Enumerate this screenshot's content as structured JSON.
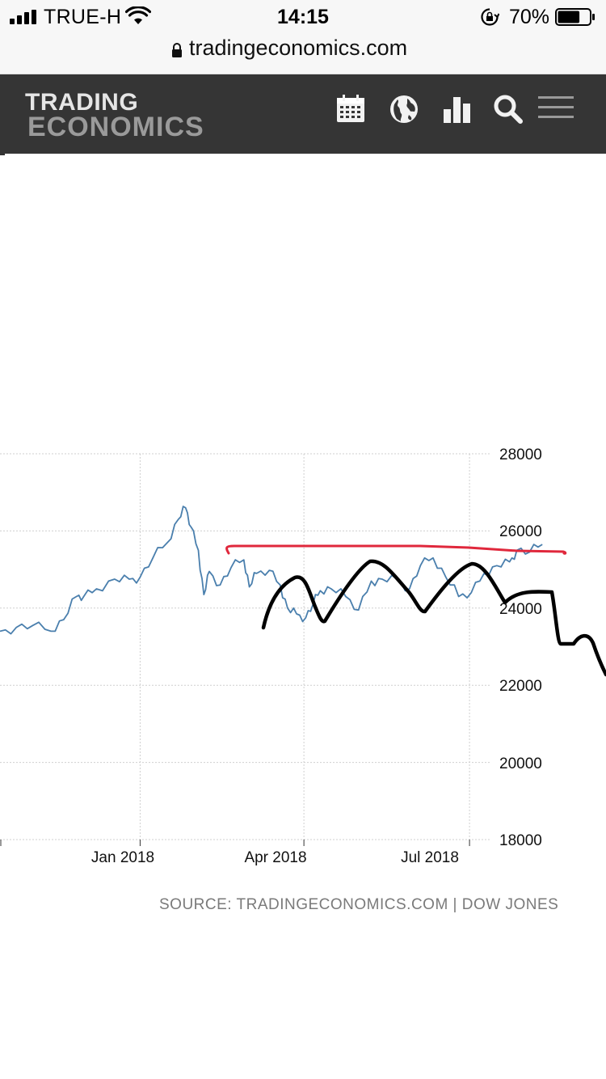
{
  "status_bar": {
    "carrier": "TRUE-H",
    "time": "14:15",
    "battery_percent": "70%",
    "battery_level": 0.7,
    "icons": [
      "signal-icon",
      "wifi-icon",
      "orientation-lock-icon",
      "battery-icon"
    ]
  },
  "browser": {
    "url": "tradingeconomics.com",
    "icons": [
      "padlock-icon"
    ]
  },
  "header": {
    "logo_line1": "TRADING",
    "logo_line2": "ECONOMICS",
    "nav_icons": [
      "calendar-icon",
      "globe-icon",
      "bar-chart-icon",
      "search-icon",
      "menu-icon"
    ]
  },
  "colors": {
    "nav_background": "#353535",
    "series_line": "#4a7fad",
    "annotation_red": "#e0283c",
    "annotation_black": "#000000"
  },
  "source_text": "SOURCE: TRADINGECONOMICS.COM | DOW JONES",
  "chart_data": {
    "type": "line",
    "title": "",
    "xlabel": "",
    "ylabel": "",
    "x_tick_labels": [
      "Jan 2018",
      "Apr 2018",
      "Jul 2018"
    ],
    "y_tick_labels": [
      "28000",
      "26000",
      "24000",
      "22000",
      "20000",
      "18000"
    ],
    "ylim": [
      18000,
      28000
    ],
    "xlim": [
      "2017-10-16",
      "2018-09-14"
    ],
    "grid": true,
    "series": [
      {
        "x": [
          "2017-10-16",
          "2017-10-25",
          "2017-11-03",
          "2017-11-13",
          "2017-11-20",
          "2017-11-27",
          "2017-12-01",
          "2017-12-08",
          "2017-12-18",
          "2017-12-26",
          "2018-01-01",
          "2018-01-08",
          "2018-01-16",
          "2018-01-22",
          "2018-01-26",
          "2018-01-29",
          "2018-02-02",
          "2018-02-05",
          "2018-02-08",
          "2018-02-14",
          "2018-02-20",
          "2018-02-27",
          "2018-03-02",
          "2018-03-06",
          "2018-03-13",
          "2018-03-19",
          "2018-03-23",
          "2018-03-28",
          "2018-04-02",
          "2018-04-06",
          "2018-04-10",
          "2018-04-16",
          "2018-04-24",
          "2018-05-01",
          "2018-05-08",
          "2018-05-14",
          "2018-05-22",
          "2018-05-29",
          "2018-06-04",
          "2018-06-11",
          "2018-06-18",
          "2018-06-25",
          "2018-07-02",
          "2018-07-09",
          "2018-07-16",
          "2018-07-23",
          "2018-07-27",
          "2018-08-03",
          "2018-08-10"
        ],
        "values": [
          23400,
          23500,
          23550,
          23400,
          23700,
          24300,
          24300,
          24500,
          24750,
          24750,
          24800,
          25300,
          25700,
          26300,
          26600,
          26100,
          25500,
          24350,
          24950,
          24600,
          25050,
          25250,
          24550,
          24900,
          24980,
          24600,
          24000,
          23850,
          23750,
          24100,
          24450,
          24500,
          24300,
          23950,
          24700,
          24750,
          24750,
          24500,
          25100,
          25300,
          24800,
          24300,
          24400,
          24900,
          25100,
          25200,
          25500,
          25450,
          25650
        ]
      }
    ],
    "annotations": [
      {
        "type": "hand-drawn",
        "color": "red",
        "description_free": true
      },
      {
        "type": "hand-drawn",
        "color": "black",
        "description_free": true
      }
    ]
  }
}
